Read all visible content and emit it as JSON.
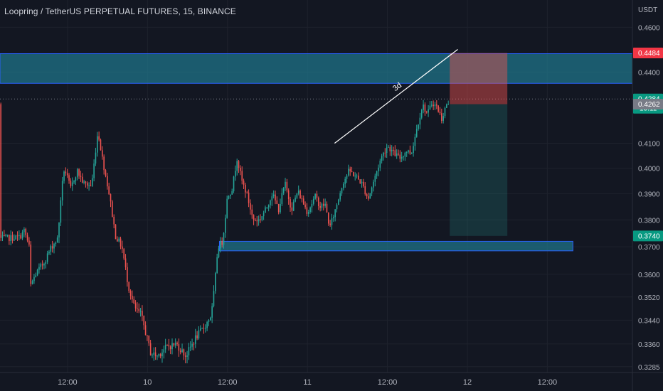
{
  "header": {
    "symbol": "Loopring / TetherUS PERPETUAL FUTURES",
    "interval": "15",
    "exchange": "BINANCE"
  },
  "chart_data": {
    "type": "candlestick",
    "title": "Loopring / TetherUS PERPETUAL FUTURES, 15, BINANCE",
    "y_axis": {
      "unit": "USDT",
      "position": "right",
      "ticks": [
        0.46,
        0.44,
        0.41,
        0.4,
        0.39,
        0.38,
        0.37,
        0.36,
        0.352,
        0.344,
        0.336,
        0.3285
      ],
      "ylim": [
        0.3266,
        0.4726
      ],
      "scale": "log"
    },
    "x_axis": {
      "ticks": [
        {
          "label": "12:00",
          "pos": 0.0
        },
        {
          "label": "10",
          "pos": 0.5
        },
        {
          "label": "12:00",
          "pos": 1.0
        },
        {
          "label": "11",
          "pos": 1.5
        },
        {
          "label": "12:00",
          "pos": 2.0
        },
        {
          "label": "12",
          "pos": 2.5
        },
        {
          "label": "12:00",
          "pos": 3.0
        }
      ],
      "xlim": [
        -0.422,
        3.532
      ],
      "visible_through": 2.391
    },
    "price_path": [
      [
        -0.42,
        0.373
      ],
      [
        -0.3,
        0.3735
      ],
      [
        -0.27,
        0.376
      ],
      [
        -0.24,
        0.37
      ],
      [
        -0.23,
        0.356
      ],
      [
        -0.2,
        0.36
      ],
      [
        -0.15,
        0.364
      ],
      [
        -0.1,
        0.37
      ],
      [
        -0.06,
        0.373
      ],
      [
        -0.04,
        0.39
      ],
      [
        -0.02,
        0.4
      ],
      [
        0.02,
        0.392
      ],
      [
        0.06,
        0.399
      ],
      [
        0.1,
        0.394
      ],
      [
        0.15,
        0.393
      ],
      [
        0.19,
        0.415
      ],
      [
        0.22,
        0.403
      ],
      [
        0.26,
        0.39
      ],
      [
        0.3,
        0.374
      ],
      [
        0.34,
        0.37
      ],
      [
        0.38,
        0.356
      ],
      [
        0.42,
        0.348
      ],
      [
        0.46,
        0.346
      ],
      [
        0.52,
        0.333
      ],
      [
        0.56,
        0.332
      ],
      [
        0.62,
        0.335
      ],
      [
        0.68,
        0.336
      ],
      [
        0.74,
        0.332
      ],
      [
        0.8,
        0.338
      ],
      [
        0.86,
        0.342
      ],
      [
        0.9,
        0.346
      ],
      [
        0.92,
        0.356
      ],
      [
        0.94,
        0.37
      ],
      [
        0.97,
        0.372
      ],
      [
        1.0,
        0.389
      ],
      [
        1.03,
        0.392
      ],
      [
        1.06,
        0.404
      ],
      [
        1.09,
        0.395
      ],
      [
        1.12,
        0.39
      ],
      [
        1.16,
        0.38
      ],
      [
        1.2,
        0.38
      ],
      [
        1.24,
        0.384
      ],
      [
        1.28,
        0.39
      ],
      [
        1.32,
        0.384
      ],
      [
        1.36,
        0.394
      ],
      [
        1.4,
        0.384
      ],
      [
        1.44,
        0.391
      ],
      [
        1.5,
        0.383
      ],
      [
        1.55,
        0.389
      ],
      [
        1.58,
        0.385
      ],
      [
        1.61,
        0.386
      ],
      [
        1.64,
        0.377
      ],
      [
        1.68,
        0.385
      ],
      [
        1.72,
        0.394
      ],
      [
        1.76,
        0.399
      ],
      [
        1.8,
        0.397
      ],
      [
        1.84,
        0.394
      ],
      [
        1.88,
        0.388
      ],
      [
        1.92,
        0.396
      ],
      [
        1.96,
        0.404
      ],
      [
        2.0,
        0.409
      ],
      [
        2.04,
        0.406
      ],
      [
        2.08,
        0.404
      ],
      [
        2.12,
        0.407
      ],
      [
        2.15,
        0.406
      ],
      [
        2.18,
        0.415
      ],
      [
        2.22,
        0.426
      ],
      [
        2.25,
        0.422
      ],
      [
        2.28,
        0.427
      ],
      [
        2.31,
        0.425
      ],
      [
        2.34,
        0.42
      ],
      [
        2.37,
        0.4262
      ],
      [
        2.39,
        0.4262
      ]
    ],
    "sample_step": 0.0104,
    "volatility": 0.0024,
    "up_color": "#26a69a",
    "down_color": "#ef5350",
    "current_price": 0.4262,
    "drawings": {
      "resistance_zone": {
        "from": 0.4351,
        "to": 0.4481,
        "x_from": -0.422,
        "x_to": 3.532,
        "fill": "#1f7388",
        "stroke": "#2962ff"
      },
      "support_zone": {
        "from": 0.3685,
        "to": 0.372,
        "x_from": 0.95,
        "x_to": 3.16,
        "fill": "#1f7388",
        "stroke": "#2962ff"
      },
      "short_position": {
        "x_from": 2.39,
        "x_to": 2.75,
        "entry": 0.4262,
        "stop": 0.4484,
        "target": 0.374,
        "stop_color": "#ef5350",
        "target_color": "#26a69a"
      },
      "trend_line": {
        "x1": 1.67,
        "y1": 0.41,
        "x2": 2.44,
        "y2": 0.45,
        "label": "3d"
      },
      "dotted_line_price": 0.4284
    },
    "price_labels": [
      {
        "value": "0.4484",
        "text_color": "#ffffff",
        "bg": "#f23645"
      },
      {
        "value": "0.4284",
        "sub": "13:11",
        "text_color": "#ffffff",
        "bg": "#089981"
      },
      {
        "value": "0.4262",
        "text_color": "#ffffff",
        "bg": "#787b86"
      },
      {
        "value": "0.3740",
        "text_color": "#ffffff",
        "bg": "#089981"
      }
    ]
  }
}
